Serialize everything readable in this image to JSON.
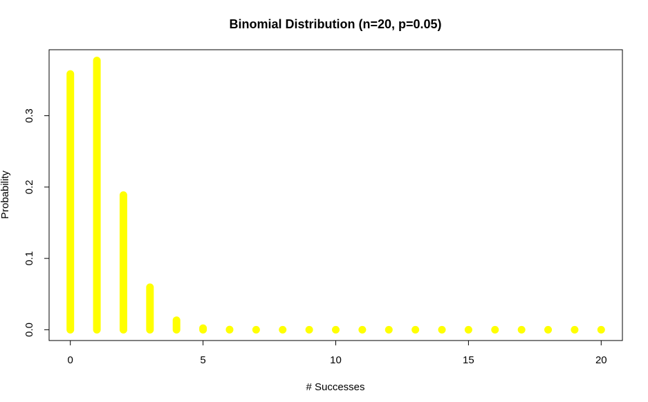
{
  "chart_data": {
    "type": "bar",
    "title": "Binomial Distribution (n=20, p=0.05)",
    "xlabel": "# Successes",
    "ylabel": "Probability",
    "x": [
      0,
      1,
      2,
      3,
      4,
      5,
      6,
      7,
      8,
      9,
      10,
      11,
      12,
      13,
      14,
      15,
      16,
      17,
      18,
      19,
      20
    ],
    "values": [
      0.3585,
      0.3774,
      0.1887,
      0.0596,
      0.0133,
      0.0022,
      0.0003,
      0.0,
      0.0,
      0.0,
      0.0,
      0.0,
      0.0,
      0.0,
      0.0,
      0.0,
      0.0,
      0.0,
      0.0,
      0.0,
      0.0
    ],
    "x_ticks": [
      0,
      5,
      10,
      15,
      20
    ],
    "x_tick_labels": [
      "0",
      "5",
      "10",
      "15",
      "20"
    ],
    "y_ticks": [
      0.0,
      0.1,
      0.2,
      0.3
    ],
    "y_tick_labels": [
      "0.0",
      "0.1",
      "0.2",
      "0.3"
    ],
    "xlim": [
      -0.8,
      20.8
    ],
    "ylim": [
      -0.0151,
      0.3925
    ],
    "bar_color": "#ffff00",
    "grid": false,
    "legend": "none"
  }
}
